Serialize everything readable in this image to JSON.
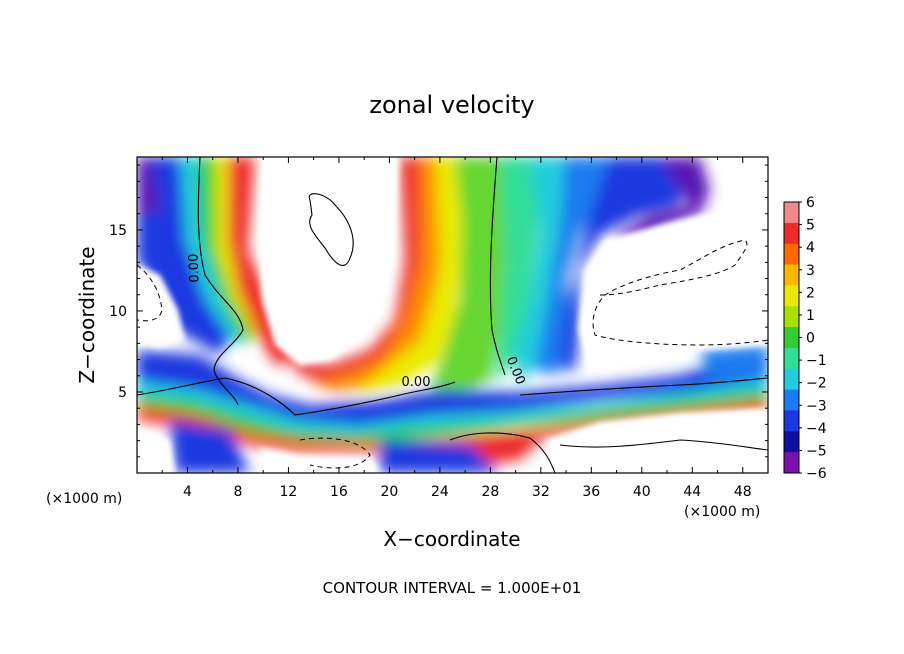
{
  "chart_data": {
    "type": "heatmap",
    "title": "zonal velocity",
    "xlabel": "X−coordinate",
    "ylabel": "Z−coordinate",
    "x_unit_left": "(×1000 m)",
    "x_unit_right": "(×1000 m)",
    "xlim": [
      0,
      50
    ],
    "ylim": [
      0,
      19.5
    ],
    "x_ticks": [
      4,
      8,
      12,
      16,
      20,
      24,
      28,
      32,
      36,
      40,
      44,
      48
    ],
    "y_ticks": [
      5,
      10,
      15
    ],
    "colorbar_levels": [
      6,
      5,
      4,
      3,
      2,
      1,
      0,
      -1,
      -2,
      -3,
      -4,
      -5,
      -6
    ],
    "colorbar_labels": [
      "6",
      "5",
      "4",
      "3",
      "2",
      "1",
      "0",
      "−1",
      "−2",
      "−3",
      "−4",
      "−5",
      "−6"
    ],
    "colorbar_colors": [
      "#f08a8a",
      "#ee2a2a",
      "#ff6a00",
      "#ffb800",
      "#eaea00",
      "#a8e000",
      "#33cc33",
      "#33dd99",
      "#22ccdd",
      "#1a7cf0",
      "#1c38e0",
      "#1010a0",
      "#7a10b0"
    ],
    "contour_labels": [
      "0.00",
      "0.00",
      "0.00"
    ],
    "contour_interval_text": "CONTOUR INTERVAL =  1.000E+01",
    "grid": false,
    "legend": "colorbar right"
  }
}
